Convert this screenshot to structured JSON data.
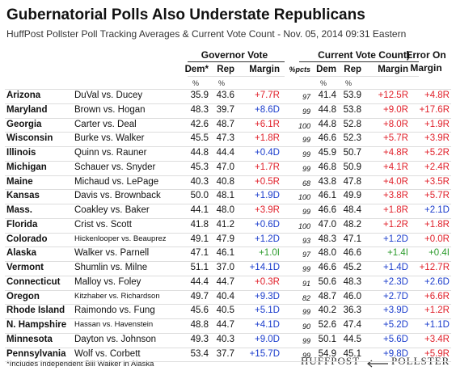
{
  "header": {
    "title": "Gubernatorial Polls Also Understate Republicans",
    "subtitle": "HuffPost Pollster Poll Tracking Averages & Current Vote Count - Nov. 05, 2014 09:31 Eastern"
  },
  "table": {
    "groups": [
      "Governor Vote",
      "Current Vote Count)",
      "Error On"
    ],
    "error_sub": "Margin",
    "columns": [
      "Dem*",
      "Rep",
      "Margin",
      "%pcts",
      "Dem",
      "Rep",
      "Margin"
    ],
    "units": [
      "%",
      "%",
      "%",
      "%"
    ],
    "rows": [
      [
        "Arizona",
        "DuVal vs. Ducey",
        "35.9",
        "43.6",
        "+7.7R",
        "97",
        "41.4",
        "53.9",
        "+12.5R",
        "+4.8R"
      ],
      [
        "Maryland",
        "Brown vs. Hogan",
        "48.3",
        "39.7",
        "+8.6D",
        "99",
        "44.8",
        "53.8",
        "+9.0R",
        "+17.6R"
      ],
      [
        "Georgia",
        "Carter vs. Deal",
        "42.6",
        "48.7",
        "+6.1R",
        "100",
        "44.8",
        "52.8",
        "+8.0R",
        "+1.9R"
      ],
      [
        "Wisconsin",
        "Burke vs. Walker",
        "45.5",
        "47.3",
        "+1.8R",
        "99",
        "46.6",
        "52.3",
        "+5.7R",
        "+3.9R"
      ],
      [
        "Illinois",
        "Quinn vs. Rauner",
        "44.8",
        "44.4",
        "+0.4D",
        "99",
        "45.9",
        "50.7",
        "+4.8R",
        "+5.2R"
      ],
      [
        "Michigan",
        "Schauer vs. Snyder",
        "45.3",
        "47.0",
        "+1.7R",
        "99",
        "46.8",
        "50.9",
        "+4.1R",
        "+2.4R"
      ],
      [
        "Maine",
        "Michaud vs. LePage",
        "40.3",
        "40.8",
        "+0.5R",
        "68",
        "43.8",
        "47.8",
        "+4.0R",
        "+3.5R"
      ],
      [
        "Kansas",
        "Davis vs. Brownback",
        "50.0",
        "48.1",
        "+1.9D",
        "100",
        "46.1",
        "49.9",
        "+3.8R",
        "+5.7R"
      ],
      [
        "Mass.",
        "Coakley vs. Baker",
        "44.1",
        "48.0",
        "+3.9R",
        "99",
        "46.6",
        "48.4",
        "+1.8R",
        "+2.1D"
      ],
      [
        "Florida",
        "Crist vs. Scott",
        "41.8",
        "41.2",
        "+0.6D",
        "100",
        "47.0",
        "48.2",
        "+1.2R",
        "+1.8R"
      ],
      [
        "Colorado",
        "Hickenlooper vs. Beauprez",
        "49.1",
        "47.9",
        "+1.2D",
        "93",
        "48.3",
        "47.1",
        "+1.2D",
        "+0.0R"
      ],
      [
        "Alaska",
        "Walker vs. Parnell",
        "47.1",
        "46.1",
        "+1.0I",
        "97",
        "48.0",
        "46.6",
        "+1.4I",
        "+0.4I"
      ],
      [
        "Vermont",
        "Shumlin vs. Milne",
        "51.1",
        "37.0",
        "+14.1D",
        "99",
        "46.6",
        "45.2",
        "+1.4D",
        "+12.7R"
      ],
      [
        "Connecticut",
        "Malloy vs. Foley",
        "44.4",
        "44.7",
        "+0.3R",
        "91",
        "50.6",
        "48.3",
        "+2.3D",
        "+2.6D"
      ],
      [
        "Oregon",
        "Kitzhaber vs. Richardson",
        "49.7",
        "40.4",
        "+9.3D",
        "82",
        "48.7",
        "46.0",
        "+2.7D",
        "+6.6R"
      ],
      [
        "Rhode Island",
        "Raimondo vs. Fung",
        "45.6",
        "40.5",
        "+5.1D",
        "99",
        "40.2",
        "36.3",
        "+3.9D",
        "+1.2R"
      ],
      [
        "N. Hampshire",
        "Hassan vs. Havenstein",
        "48.8",
        "44.7",
        "+4.1D",
        "90",
        "52.6",
        "47.4",
        "+5.2D",
        "+1.1D"
      ],
      [
        "Minnesota",
        "Dayton vs. Johnson",
        "49.3",
        "40.3",
        "+9.0D",
        "99",
        "50.1",
        "44.5",
        "+5.6D",
        "+3.4R"
      ],
      [
        "Pennsylvania",
        "Wolf vs. Corbett",
        "53.4",
        "37.7",
        "+15.7D",
        "99",
        "54.9",
        "45.1",
        "+9.8D",
        "+5.9R"
      ]
    ]
  },
  "footnote": "*Includes Independent Bill Walker in Alaska",
  "logo": {
    "left": "HUFFPOST",
    "right": "POLLSTER"
  }
}
